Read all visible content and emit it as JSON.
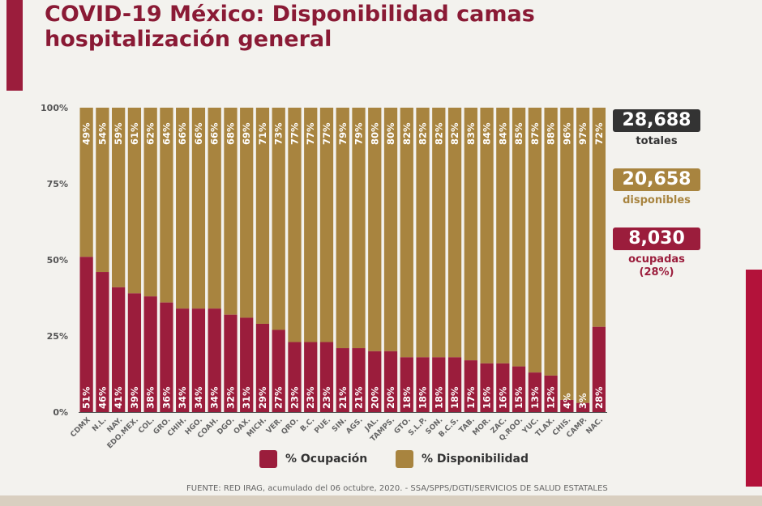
{
  "title": "COVID-19 México: Disponibilidad camas hospitalización general",
  "colors": {
    "ocupacion": "#9b1d3c",
    "disponibilidad": "#a8843f",
    "totales": "#333333"
  },
  "stats": {
    "totales": {
      "value": "28,688",
      "label": "totales"
    },
    "disponibles": {
      "value": "20,658",
      "label": "disponibles"
    },
    "ocupadas": {
      "value": "8,030",
      "label": "ocupadas",
      "pct": "(28%)"
    }
  },
  "legend": {
    "ocupacion": "% Ocupación",
    "disponibilidad": "% Disponibilidad"
  },
  "source": "FUENTE: RED IRAG, acumulado del 06 octubre, 2020. -  SSA/SPPS/DGTI/SERVICIOS DE SALUD ESTATALES",
  "chart_data": {
    "type": "bar",
    "stacked": true,
    "ylim": [
      0,
      100
    ],
    "yticks": [
      "0%",
      "25%",
      "50%",
      "75%",
      "100%"
    ],
    "categories": [
      "CDMX",
      "N.L.",
      "NAY.",
      "EDO.MEX.",
      "COL.",
      "GRO.",
      "CHIH.",
      "HGO.",
      "COAH.",
      "DGO.",
      "OAX.",
      "MICH.",
      "VER.",
      "QRO.",
      "B.C.",
      "PUE.",
      "SIN.",
      "AGS.",
      "JAL.",
      "TAMPS.",
      "GTO.",
      "S.L.P.",
      "SON.",
      "B.C.S.",
      "TAB.",
      "MOR.",
      "ZAC.",
      "Q.ROO.",
      "YUC.",
      "TLAX.",
      "CHIS.",
      "CAMP.",
      "NAC."
    ],
    "series": [
      {
        "name": "% Ocupación",
        "values": [
          51,
          46,
          41,
          39,
          38,
          36,
          34,
          34,
          34,
          32,
          31,
          29,
          27,
          23,
          23,
          23,
          21,
          21,
          20,
          20,
          18,
          18,
          18,
          18,
          17,
          16,
          16,
          15,
          13,
          12,
          4,
          3,
          28
        ]
      },
      {
        "name": "% Disponibilidad",
        "values": [
          49,
          54,
          59,
          61,
          62,
          64,
          66,
          66,
          66,
          68,
          69,
          71,
          73,
          77,
          77,
          77,
          79,
          79,
          80,
          80,
          82,
          82,
          82,
          82,
          83,
          84,
          84,
          85,
          87,
          88,
          96,
          97,
          72
        ]
      }
    ],
    "legend": "bottom"
  }
}
